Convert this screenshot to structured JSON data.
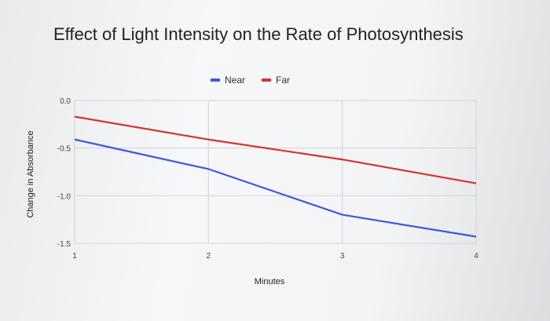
{
  "chart_data": {
    "type": "line",
    "title": "Effect of Light Intensity on the Rate of Photosynthesis",
    "xlabel": "Minutes",
    "ylabel": "Change in Absorbance",
    "x": [
      1,
      2,
      3,
      4
    ],
    "xlim": [
      1,
      4
    ],
    "ylim": [
      -1.5,
      0.0
    ],
    "x_ticks": [
      "1",
      "2",
      "3",
      "4"
    ],
    "y_ticks": [
      "0.0",
      "-0.5",
      "-1.0",
      "-1.5"
    ],
    "y_tick_values": [
      0.0,
      -0.5,
      -1.0,
      -1.5
    ],
    "grid": true,
    "legend_position": "top",
    "series": [
      {
        "name": "Near",
        "values": [
          -0.41,
          -0.72,
          -1.2,
          -1.43
        ],
        "color": "#3b5bdb"
      },
      {
        "name": "Far",
        "values": [
          -0.17,
          -0.41,
          -0.62,
          -0.87
        ],
        "color": "#d63333"
      }
    ]
  }
}
